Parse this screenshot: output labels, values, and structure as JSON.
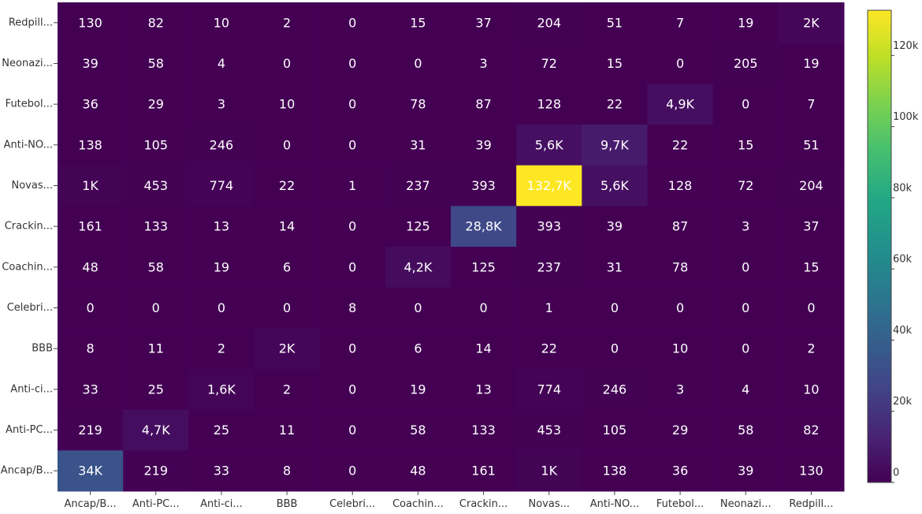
{
  "chart_data": {
    "type": "heatmap",
    "x_categories": [
      "Ancap/B...",
      "Anti-PC...",
      "Anti-ci...",
      "BBB",
      "Celebri...",
      "Coachin...",
      "Crackin...",
      "Novas...",
      "Anti-NO...",
      "Futebol...",
      "Neonazi...",
      "Redpill..."
    ],
    "y_categories": [
      "Redpill...",
      "Neonazi...",
      "Futebol...",
      "Anti-NO...",
      "Novas...",
      "Crackin...",
      "Coachin...",
      "Celebri...",
      "BBB",
      "Anti-ci...",
      "Anti-PC...",
      "Ancap/B..."
    ],
    "values": [
      [
        130,
        82,
        10,
        2,
        0,
        15,
        37,
        204,
        51,
        7,
        19,
        2000
      ],
      [
        39,
        58,
        4,
        0,
        0,
        0,
        3,
        72,
        15,
        0,
        205,
        19
      ],
      [
        36,
        29,
        3,
        10,
        0,
        78,
        87,
        128,
        22,
        4900,
        0,
        7
      ],
      [
        138,
        105,
        246,
        0,
        0,
        31,
        39,
        5600,
        9700,
        22,
        15,
        51
      ],
      [
        1000,
        453,
        774,
        22,
        1,
        237,
        393,
        132700,
        5600,
        128,
        72,
        204
      ],
      [
        161,
        133,
        13,
        14,
        0,
        125,
        28800,
        393,
        39,
        87,
        3,
        37
      ],
      [
        48,
        58,
        19,
        6,
        0,
        4200,
        125,
        237,
        31,
        78,
        0,
        15
      ],
      [
        0,
        0,
        0,
        0,
        8,
        0,
        0,
        1,
        0,
        0,
        0,
        0
      ],
      [
        8,
        11,
        2,
        2000,
        0,
        6,
        14,
        22,
        0,
        10,
        0,
        2
      ],
      [
        33,
        25,
        1600,
        2,
        0,
        19,
        13,
        774,
        246,
        3,
        4,
        10
      ],
      [
        219,
        4700,
        25,
        11,
        0,
        58,
        133,
        453,
        105,
        29,
        58,
        82
      ],
      [
        34000,
        219,
        33,
        8,
        0,
        48,
        161,
        1000,
        138,
        36,
        39,
        130
      ]
    ],
    "labels": [
      [
        "130",
        "82",
        "10",
        "2",
        "0",
        "15",
        "37",
        "204",
        "51",
        "7",
        "19",
        "2K"
      ],
      [
        "39",
        "58",
        "4",
        "0",
        "0",
        "0",
        "3",
        "72",
        "15",
        "0",
        "205",
        "19"
      ],
      [
        "36",
        "29",
        "3",
        "10",
        "0",
        "78",
        "87",
        "128",
        "22",
        "4,9K",
        "0",
        "7"
      ],
      [
        "138",
        "105",
        "246",
        "0",
        "0",
        "31",
        "39",
        "5,6K",
        "9,7K",
        "22",
        "15",
        "51"
      ],
      [
        "1K",
        "453",
        "774",
        "22",
        "1",
        "237",
        "393",
        "132,7K",
        "5,6K",
        "128",
        "72",
        "204"
      ],
      [
        "161",
        "133",
        "13",
        "14",
        "0",
        "125",
        "28,8K",
        "393",
        "39",
        "87",
        "3",
        "37"
      ],
      [
        "48",
        "58",
        "19",
        "6",
        "0",
        "4,2K",
        "125",
        "237",
        "31",
        "78",
        "0",
        "15"
      ],
      [
        "0",
        "0",
        "0",
        "0",
        "8",
        "0",
        "0",
        "1",
        "0",
        "0",
        "0",
        "0"
      ],
      [
        "8",
        "11",
        "2",
        "2K",
        "0",
        "6",
        "14",
        "22",
        "0",
        "10",
        "0",
        "2"
      ],
      [
        "33",
        "25",
        "1,6K",
        "2",
        "0",
        "19",
        "13",
        "774",
        "246",
        "3",
        "4",
        "10"
      ],
      [
        "219",
        "4,7K",
        "25",
        "11",
        "0",
        "58",
        "133",
        "453",
        "105",
        "29",
        "58",
        "82"
      ],
      [
        "34K",
        "219",
        "33",
        "8",
        "0",
        "48",
        "161",
        "1K",
        "138",
        "36",
        "39",
        "130"
      ]
    ],
    "zrange": [
      0,
      132700
    ],
    "colorscale": "viridis",
    "colorbar_ticks": [
      {
        "value": 0,
        "label": "0"
      },
      {
        "value": 20000,
        "label": "20k"
      },
      {
        "value": 40000,
        "label": "40k"
      },
      {
        "value": 60000,
        "label": "60k"
      },
      {
        "value": 80000,
        "label": "80k"
      },
      {
        "value": 100000,
        "label": "100k"
      },
      {
        "value": 120000,
        "label": "120k"
      }
    ],
    "colorbar_position": "right"
  }
}
